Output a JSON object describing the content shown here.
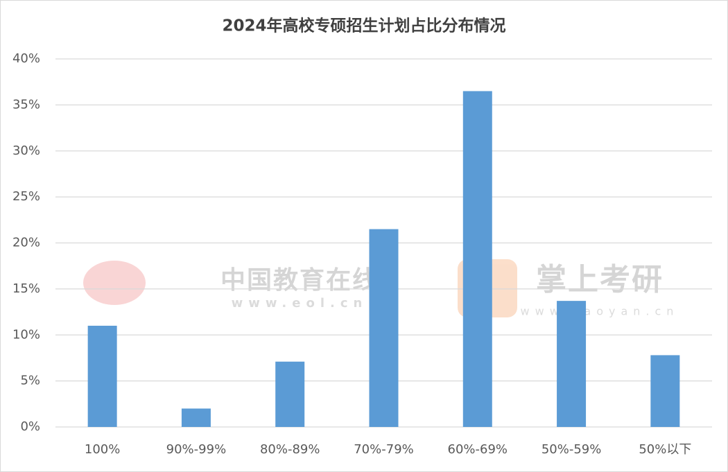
{
  "chart_data": {
    "type": "bar",
    "title": "2024年高校专硕招生计划占比分布情况",
    "categories": [
      "100%",
      "90%-99%",
      "80%-89%",
      "70%-79%",
      "60%-69%",
      "50%-59%",
      "50%以下"
    ],
    "values": [
      11.0,
      2.0,
      7.1,
      21.5,
      36.5,
      13.7,
      7.8
    ],
    "color": "#5b9bd5",
    "ylim": [
      0,
      40
    ],
    "yticks": [
      {
        "value": 0,
        "label": "0%"
      },
      {
        "value": 5,
        "label": "5%"
      },
      {
        "value": 10,
        "label": "10%"
      },
      {
        "value": 15,
        "label": "15%"
      },
      {
        "value": 20,
        "label": "20%"
      },
      {
        "value": 25,
        "label": "25%"
      },
      {
        "value": 30,
        "label": "30%"
      },
      {
        "value": 35,
        "label": "35%"
      },
      {
        "value": 40,
        "label": "40%"
      }
    ],
    "grid": true,
    "watermarks": [
      "中国教育在线",
      "www.eol.cn",
      "掌上考研",
      "www.kaoyan.cn"
    ]
  }
}
